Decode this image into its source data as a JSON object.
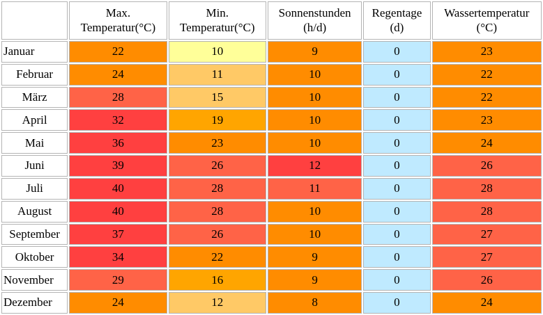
{
  "headers": {
    "month": "",
    "max_temp": [
      "Max.",
      "Temperatur(°C)"
    ],
    "min_temp": [
      "Min.",
      "Temperatur(°C)"
    ],
    "sunshine": [
      "Sonnenstunden",
      "(h/d)"
    ],
    "rain_days": [
      "Regentage",
      "(d)"
    ],
    "water_temp": [
      "Wassertemperatur",
      "(°C)"
    ]
  },
  "colors": {
    "red": "#ff4040",
    "salmon": "#ff6347",
    "orange": "#ff8c00",
    "amber": "#ffa500",
    "peach": "#ffc966",
    "pale_yellow": "#ffff99",
    "light_blue": "#bfeaff"
  },
  "rows": [
    {
      "month": "Januar",
      "max": "22",
      "min": "10",
      "sun": "9",
      "rain": "0",
      "water": "23",
      "max_color": "#ff8c00",
      "min_color": "#ffff99",
      "sun_color": "#ff8c00",
      "rain_color": "#bfeaff",
      "water_color": "#ff8c00"
    },
    {
      "month": "Februar",
      "max": "24",
      "min": "11",
      "sun": "10",
      "rain": "0",
      "water": "22",
      "max_color": "#ff8c00",
      "min_color": "#ffc966",
      "sun_color": "#ff8c00",
      "rain_color": "#bfeaff",
      "water_color": "#ff8c00"
    },
    {
      "month": "März",
      "max": "28",
      "min": "15",
      "sun": "10",
      "rain": "0",
      "water": "22",
      "max_color": "#ff6347",
      "min_color": "#ffc966",
      "sun_color": "#ff8c00",
      "rain_color": "#bfeaff",
      "water_color": "#ff8c00"
    },
    {
      "month": "April",
      "max": "32",
      "min": "19",
      "sun": "10",
      "rain": "0",
      "water": "23",
      "max_color": "#ff4040",
      "min_color": "#ffa500",
      "sun_color": "#ff8c00",
      "rain_color": "#bfeaff",
      "water_color": "#ff8c00"
    },
    {
      "month": "Mai",
      "max": "36",
      "min": "23",
      "sun": "10",
      "rain": "0",
      "water": "24",
      "max_color": "#ff4040",
      "min_color": "#ff8c00",
      "sun_color": "#ff8c00",
      "rain_color": "#bfeaff",
      "water_color": "#ff8c00"
    },
    {
      "month": "Juni",
      "max": "39",
      "min": "26",
      "sun": "12",
      "rain": "0",
      "water": "26",
      "max_color": "#ff4040",
      "min_color": "#ff6347",
      "sun_color": "#ff4040",
      "rain_color": "#bfeaff",
      "water_color": "#ff6347"
    },
    {
      "month": "Juli",
      "max": "40",
      "min": "28",
      "sun": "11",
      "rain": "0",
      "water": "28",
      "max_color": "#ff4040",
      "min_color": "#ff6347",
      "sun_color": "#ff6347",
      "rain_color": "#bfeaff",
      "water_color": "#ff6347"
    },
    {
      "month": "August",
      "max": "40",
      "min": "28",
      "sun": "10",
      "rain": "0",
      "water": "28",
      "max_color": "#ff4040",
      "min_color": "#ff6347",
      "sun_color": "#ff8c00",
      "rain_color": "#bfeaff",
      "water_color": "#ff6347"
    },
    {
      "month": "September",
      "max": "37",
      "min": "26",
      "sun": "10",
      "rain": "0",
      "water": "27",
      "max_color": "#ff4040",
      "min_color": "#ff6347",
      "sun_color": "#ff8c00",
      "rain_color": "#bfeaff",
      "water_color": "#ff6347"
    },
    {
      "month": "Oktober",
      "max": "34",
      "min": "22",
      "sun": "9",
      "rain": "0",
      "water": "27",
      "max_color": "#ff4040",
      "min_color": "#ff8c00",
      "sun_color": "#ff8c00",
      "rain_color": "#bfeaff",
      "water_color": "#ff6347"
    },
    {
      "month": "November",
      "max": "29",
      "min": "16",
      "sun": "9",
      "rain": "0",
      "water": "26",
      "max_color": "#ff6347",
      "min_color": "#ffa500",
      "sun_color": "#ff8c00",
      "rain_color": "#bfeaff",
      "water_color": "#ff6347"
    },
    {
      "month": "Dezember",
      "max": "24",
      "min": "12",
      "sun": "8",
      "rain": "0",
      "water": "24",
      "max_color": "#ff8c00",
      "min_color": "#ffc966",
      "sun_color": "#ff8c00",
      "rain_color": "#bfeaff",
      "water_color": "#ff8c00"
    }
  ]
}
